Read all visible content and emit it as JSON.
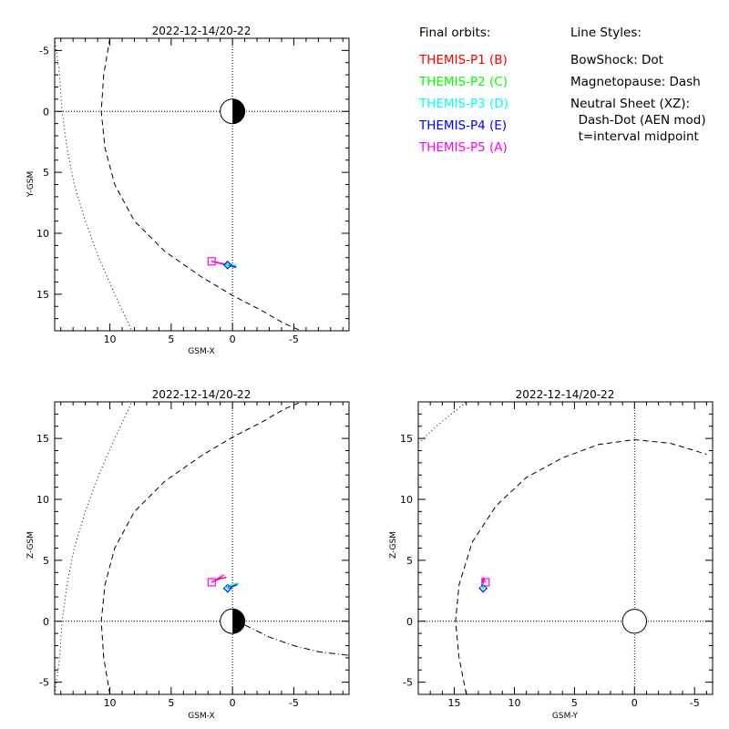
{
  "legend": {
    "orbits_heading": "Final orbits:",
    "probes": [
      {
        "label": "THEMIS-P1 (B)",
        "color": "#ff0000"
      },
      {
        "label": "THEMIS-P2 (C)",
        "color": "#00ff00"
      },
      {
        "label": "THEMIS-P3 (D)",
        "color": "#00ffff"
      },
      {
        "label": "THEMIS-P4 (E)",
        "color": "#0000ff"
      },
      {
        "label": "THEMIS-P5 (A)",
        "color": "#ff00ff"
      }
    ],
    "styles_heading": "Line Styles:",
    "styles": [
      "BowShock: Dot",
      "Magnetopause: Dash",
      "Neutral Sheet (XZ):",
      "  Dash-Dot (AEN mod)",
      "  t=interval midpoint"
    ]
  },
  "chart_data": [
    {
      "id": "xy",
      "type": "line",
      "title": "2022-12-14/20-22",
      "xlabel": "GSM-X",
      "ylabel": "Y-GSM",
      "xlim": [
        14.5,
        -9.5
      ],
      "ylim": [
        18,
        -6
      ],
      "xticks": [
        10,
        5,
        0,
        -5
      ],
      "yticks": [
        -5,
        0,
        5,
        10,
        15
      ],
      "crosshair": [
        0,
        0
      ],
      "earth": {
        "x": 0,
        "y": 0,
        "r": 1,
        "shade": "night-half-x"
      },
      "series": [
        {
          "role": "bow-shock",
          "style": "dot",
          "points": [
            [
              14.5,
              -6
            ],
            [
              14.1,
              -3
            ],
            [
              13.9,
              0
            ],
            [
              13.5,
              3
            ],
            [
              12.9,
              6
            ],
            [
              12.0,
              9
            ],
            [
              10.9,
              12
            ],
            [
              9.6,
              15
            ],
            [
              8.2,
              18
            ]
          ]
        },
        {
          "role": "magnetopause",
          "style": "dash",
          "points": [
            [
              10.0,
              -6
            ],
            [
              10.5,
              -3
            ],
            [
              10.7,
              0
            ],
            [
              10.4,
              3
            ],
            [
              9.6,
              6
            ],
            [
              8.0,
              9
            ],
            [
              5.5,
              11.5
            ],
            [
              2.5,
              13.6
            ],
            [
              0,
              15.1
            ],
            [
              -2.5,
              16.4
            ],
            [
              -4.2,
              17.4
            ],
            [
              -5.6,
              18
            ]
          ]
        },
        {
          "role": "P1-orbit",
          "color": "#ff0000",
          "points": [
            [
              1.7,
              12.3
            ],
            [
              0.5,
              12.6
            ]
          ]
        },
        {
          "role": "P2-orbit",
          "color": "#00ff00",
          "points": [
            [
              0.6,
              12.5
            ],
            [
              -0.3,
              12.7
            ]
          ]
        },
        {
          "role": "P3-orbit",
          "color": "#00ffff",
          "points": [
            [
              0.4,
              12.6
            ],
            [
              -0.3,
              12.6
            ]
          ]
        },
        {
          "role": "P4-orbit",
          "color": "#0000ff",
          "points": [
            [
              0.4,
              12.6
            ],
            [
              -0.3,
              12.8
            ]
          ]
        },
        {
          "role": "P5-orbit",
          "color": "#ff00ff",
          "points": [
            [
              1.7,
              12.3
            ],
            [
              0.7,
              12.5
            ]
          ]
        }
      ],
      "markers": [
        {
          "probe": "P5",
          "shape": "square",
          "color": "#ff00ff",
          "x": 1.7,
          "y": 12.3
        },
        {
          "probe": "P4",
          "shape": "diamond",
          "color": "#0000ff",
          "x": 0.4,
          "y": 12.6
        },
        {
          "probe": "P3",
          "shape": "plus",
          "color": "#00ffff",
          "x": 0.4,
          "y": 12.6
        }
      ]
    },
    {
      "id": "xz",
      "type": "line",
      "title": "2022-12-14/20-22",
      "xlabel": "GSM-X",
      "ylabel": "Z-GSM",
      "xlim": [
        14.5,
        -9.5
      ],
      "ylim": [
        -6,
        18
      ],
      "xticks": [
        10,
        5,
        0,
        -5
      ],
      "yticks": [
        -5,
        0,
        5,
        10,
        15
      ],
      "crosshair": [
        0,
        0
      ],
      "earth": {
        "x": 0,
        "y": 0,
        "r": 1,
        "shade": "night-half-x"
      },
      "series": [
        {
          "role": "bow-shock",
          "style": "dot",
          "points": [
            [
              14.5,
              -6
            ],
            [
              14.1,
              -3
            ],
            [
              13.9,
              0
            ],
            [
              13.5,
              3
            ],
            [
              12.9,
              6
            ],
            [
              12.0,
              9
            ],
            [
              10.9,
              12
            ],
            [
              9.6,
              15
            ],
            [
              8.2,
              18
            ]
          ]
        },
        {
          "role": "magnetopause",
          "style": "dash",
          "points": [
            [
              10.0,
              -6
            ],
            [
              10.5,
              -3
            ],
            [
              10.7,
              0
            ],
            [
              10.4,
              3
            ],
            [
              9.6,
              6
            ],
            [
              8.0,
              9
            ],
            [
              5.5,
              11.5
            ],
            [
              2.5,
              13.6
            ],
            [
              0,
              15.1
            ],
            [
              -2.5,
              16.4
            ],
            [
              -4.2,
              17.4
            ],
            [
              -5.6,
              18
            ]
          ]
        },
        {
          "role": "neutral-sheet",
          "style": "dashdot",
          "points": [
            [
              -1,
              -0.3
            ],
            [
              -3,
              -1.3
            ],
            [
              -5,
              -2.0
            ],
            [
              -7,
              -2.5
            ],
            [
              -9.5,
              -2.8
            ]
          ]
        },
        {
          "role": "P1-orbit",
          "color": "#ff0000",
          "points": [
            [
              1.7,
              3.2
            ],
            [
              1.0,
              3.5
            ],
            [
              0.5,
              3.6
            ]
          ]
        },
        {
          "role": "P2-orbit",
          "color": "#00ff00",
          "points": [
            [
              0.6,
              2.8
            ],
            [
              -0.3,
              3.1
            ],
            [
              -0.5,
              3.1
            ]
          ]
        },
        {
          "role": "P3-orbit",
          "color": "#00ffff",
          "points": [
            [
              0.4,
              2.8
            ],
            [
              -0.4,
              3.1
            ]
          ]
        },
        {
          "role": "P4-orbit",
          "color": "#0000ff",
          "points": [
            [
              0.4,
              2.7
            ],
            [
              -0.4,
              3.0
            ]
          ]
        },
        {
          "role": "P5-orbit",
          "color": "#ff00ff",
          "points": [
            [
              1.7,
              3.2
            ],
            [
              0.7,
              3.8
            ]
          ]
        }
      ],
      "markers": [
        {
          "probe": "P5",
          "shape": "square",
          "color": "#ff00ff",
          "x": 1.7,
          "y": 3.2
        },
        {
          "probe": "P4",
          "shape": "diamond",
          "color": "#0000ff",
          "x": 0.4,
          "y": 2.7
        },
        {
          "probe": "P3",
          "shape": "plus",
          "color": "#00ffff",
          "x": 0.4,
          "y": 2.8
        }
      ]
    },
    {
      "id": "yz",
      "type": "line",
      "title": "2022-12-14/20-22",
      "xlabel": "GSM-Y",
      "ylabel": "Z-GSM",
      "xlim": [
        18,
        -6.5
      ],
      "ylim": [
        -6,
        18
      ],
      "xticks": [
        15,
        10,
        5,
        0,
        -5
      ],
      "yticks": [
        -5,
        0,
        5,
        10,
        15
      ],
      "crosshair": [
        0,
        0
      ],
      "earth": {
        "x": 0,
        "y": 0,
        "r": 1,
        "shade": "none"
      },
      "series": [
        {
          "role": "bow-shock",
          "style": "dot",
          "points": [
            [
              18,
              14.6
            ],
            [
              16.5,
              16
            ],
            [
              15,
              17.2
            ],
            [
              14,
              18
            ]
          ]
        },
        {
          "role": "magnetopause",
          "style": "dash",
          "points": [
            [
              14,
              -6
            ],
            [
              14.6,
              -3
            ],
            [
              14.9,
              0
            ],
            [
              14.6,
              3
            ],
            [
              13.5,
              6.5
            ],
            [
              11.5,
              9.5
            ],
            [
              9,
              11.8
            ],
            [
              6,
              13.4
            ],
            [
              3,
              14.5
            ],
            [
              0,
              14.9
            ],
            [
              -3,
              14.6
            ],
            [
              -6,
              13.7
            ]
          ]
        },
        {
          "role": "P1-orbit",
          "color": "#ff0000",
          "points": [
            [
              12.6,
              3.1
            ],
            [
              12.6,
              3.5
            ]
          ]
        },
        {
          "role": "P2-orbit",
          "color": "#00ff00",
          "points": [
            [
              12.6,
              2.9
            ],
            [
              12.7,
              3.1
            ]
          ]
        },
        {
          "role": "P3-orbit",
          "color": "#00ffff",
          "points": [
            [
              12.6,
              2.8
            ],
            [
              12.6,
              3.1
            ]
          ]
        },
        {
          "role": "P4-orbit",
          "color": "#0000ff",
          "points": [
            [
              12.6,
              2.7
            ],
            [
              12.7,
              3.0
            ]
          ]
        },
        {
          "role": "P5-orbit",
          "color": "#ff00ff",
          "points": [
            [
              12.4,
              3.2
            ],
            [
              12.6,
              3.6
            ]
          ]
        }
      ],
      "markers": [
        {
          "probe": "P5",
          "shape": "square",
          "color": "#ff00ff",
          "x": 12.4,
          "y": 3.2
        },
        {
          "probe": "P4",
          "shape": "diamond",
          "color": "#0000ff",
          "x": 12.6,
          "y": 2.7
        },
        {
          "probe": "P3",
          "shape": "plus",
          "color": "#00ffff",
          "x": 12.6,
          "y": 2.8
        }
      ]
    }
  ]
}
